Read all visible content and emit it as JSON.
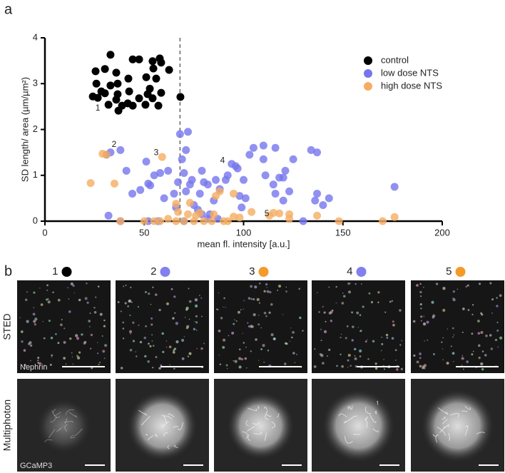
{
  "chart_data": {
    "type": "scatter",
    "xlabel": "mean fl. intensity [a.u.]",
    "ylabel": "SD length/ area (µm/µm²)",
    "xlim": [
      0,
      200
    ],
    "ylim": [
      0,
      4
    ],
    "xticks": [
      0,
      50,
      100,
      150,
      200
    ],
    "yticks": [
      0,
      1,
      2,
      3,
      4
    ],
    "vline": 68,
    "legend": "upper right",
    "series": [
      {
        "name": "control",
        "color": "#000000",
        "x": [
          33.0,
          25.5,
          30.2,
          35.9,
          44.2,
          47.4,
          54.2,
          57.8,
          58.5,
          54.6,
          62.5,
          25.9,
          24.1,
          33.0,
          36.6,
          42.0,
          51.0,
          56.0,
          52.8,
          58.5,
          54.2,
          42.4,
          36.6,
          30.2,
          26.6,
          35.9,
          41.7,
          47.4,
          51.7,
          32.0,
          37.0,
          38.8,
          44.2,
          50.6,
          57.1,
          28.4,
          68.2
        ],
        "y": [
          3.63,
          3.27,
          3.32,
          3.24,
          3.53,
          3.53,
          3.49,
          3.55,
          3.46,
          3.33,
          3.3,
          3.0,
          2.72,
          2.96,
          3.0,
          3.11,
          3.14,
          3.11,
          2.89,
          2.8,
          2.68,
          2.83,
          2.77,
          2.79,
          2.69,
          2.65,
          2.57,
          2.68,
          2.77,
          2.54,
          2.41,
          2.52,
          2.52,
          2.54,
          2.52,
          2.83,
          2.71
        ]
      },
      {
        "name": "low dose NTS",
        "color": "#7575ee",
        "x": [
          33,
          38,
          31,
          41,
          32,
          38,
          44,
          48,
          52,
          53,
          51,
          55,
          58,
          62,
          65,
          66,
          67,
          68,
          69,
          70,
          71,
          72,
          71,
          73,
          74,
          75,
          78,
          79,
          80,
          82,
          83,
          85,
          86,
          88,
          87,
          91,
          92,
          94,
          96,
          97,
          98,
          99,
          100,
          101,
          103,
          105,
          110,
          110,
          111,
          115,
          116,
          118,
          120,
          121,
          120,
          123,
          60,
          57,
          52,
          70,
          82,
          130,
          134,
          137,
          137,
          136,
          140,
          143,
          176,
          116,
          125,
          79,
          77
        ],
        "y": [
          1.5,
          1.55,
          1.45,
          1.1,
          0.12,
          0,
          0.6,
          0.68,
          0.82,
          0.78,
          1.3,
          1.0,
          1.05,
          1.1,
          0.6,
          0.3,
          0.85,
          1.9,
          1.35,
          1.05,
          1.55,
          1.95,
          0.65,
          0.8,
          0.9,
          0.35,
          0.6,
          1.1,
          0.85,
          0.8,
          0.15,
          0.45,
          0.9,
          0.7,
          0.05,
          0.9,
          1.0,
          1.25,
          1.2,
          1.15,
          0.55,
          0.3,
          0.9,
          0.5,
          1.45,
          1.6,
          1.65,
          1.35,
          1.0,
          0.8,
          0.6,
          0.95,
          0.95,
          1.1,
          0.45,
          0.65,
          0.5,
          0,
          0,
          0,
          0.05,
          0,
          1.55,
          1.5,
          0.6,
          0.45,
          0.35,
          0.5,
          0.75,
          1.6,
          1.35,
          0.15,
          0.25
        ]
      },
      {
        "name": "high dose NTS",
        "color": "#f5ad62",
        "x": [
          23,
          29,
          31,
          35,
          38,
          50,
          55,
          59,
          58,
          66,
          66,
          67,
          70,
          72,
          75,
          76,
          80,
          84,
          85,
          86,
          88,
          90,
          92,
          95,
          95,
          98,
          104,
          113,
          115,
          118,
          123,
          123,
          137,
          148,
          170,
          176,
          78,
          62,
          73
        ],
        "y": [
          0.83,
          1.47,
          1.45,
          0.82,
          0,
          0,
          0,
          1.4,
          0,
          0,
          0.38,
          0.2,
          0,
          0.15,
          0,
          0.12,
          0,
          0,
          0.15,
          0.55,
          0.65,
          0,
          0,
          0.6,
          0.1,
          0.08,
          0.2,
          0.12,
          0.18,
          0.17,
          0.15,
          0.05,
          0.12,
          0,
          0,
          0.09,
          0.18,
          0.05,
          0.4
        ]
      }
    ],
    "annotations": [
      {
        "text": "1",
        "x": 26.6,
        "y": 2.46
      },
      {
        "text": "2",
        "x": 34.8,
        "y": 1.67
      },
      {
        "text": "3",
        "x": 56,
        "y": 1.49
      },
      {
        "text": "4",
        "x": 89.4,
        "y": 1.32
      },
      {
        "text": "5",
        "x": 111.7,
        "y": 0.16
      }
    ]
  },
  "panel_labels": [
    "a",
    "b"
  ],
  "columns": [
    {
      "label": "1",
      "color": "#000000"
    },
    {
      "label": "2",
      "color": "#8080ee"
    },
    {
      "label": "3",
      "color": "#f59a28"
    },
    {
      "label": "4",
      "color": "#8080ee"
    },
    {
      "label": "5",
      "color": "#f59a28"
    }
  ],
  "rows": [
    "STED",
    "Multiphoton"
  ],
  "image_labels": [
    "Nephrin",
    "GCaMP3"
  ]
}
